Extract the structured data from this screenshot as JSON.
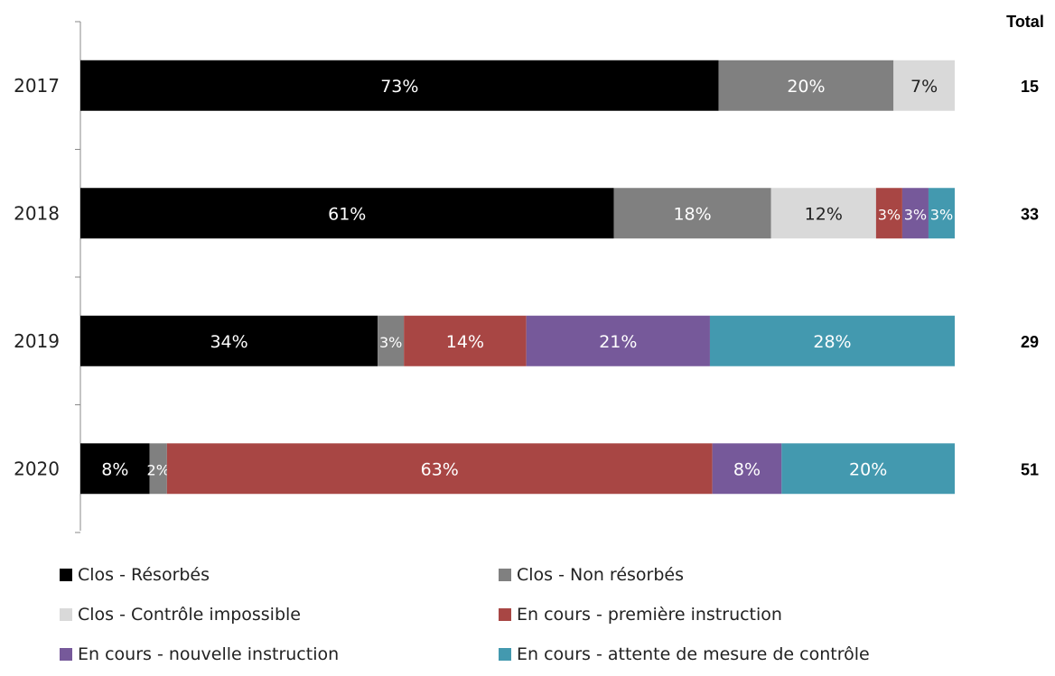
{
  "chart_data": {
    "type": "bar",
    "orientation": "horizontal",
    "stacked": true,
    "normalized": true,
    "categories": [
      "2017",
      "2018",
      "2019",
      "2020"
    ],
    "series": [
      {
        "name": "Clos - Résorbés",
        "color": "#000000",
        "values": [
          73,
          61,
          34,
          8
        ],
        "labels": [
          "73%",
          "61%",
          "34%",
          "8%"
        ]
      },
      {
        "name": "Clos - Non résorbés",
        "color": "#808080",
        "values": [
          20,
          18,
          3,
          2
        ],
        "labels": [
          "20%",
          "18%",
          "3%",
          "2%"
        ]
      },
      {
        "name": "Clos - Contrôle impossible",
        "color": "#d9d9d9",
        "values": [
          7,
          12,
          0,
          0
        ],
        "labels": [
          "7%",
          "12%",
          "",
          ""
        ]
      },
      {
        "name": "En cours - première instruction",
        "color": "#a84644",
        "values": [
          0,
          3,
          14,
          63
        ],
        "labels": [
          "",
          "3%",
          "14%",
          "63%"
        ]
      },
      {
        "name": "En cours - nouvelle instruction",
        "color": "#76599a",
        "values": [
          0,
          3,
          21,
          8
        ],
        "labels": [
          "",
          "3%",
          "21%",
          "8%"
        ]
      },
      {
        "name": "En cours - attente de mesure de contrôle",
        "color": "#4399af",
        "values": [
          0,
          3,
          28,
          20
        ],
        "labels": [
          "",
          "3%",
          "28%",
          "20%"
        ]
      }
    ],
    "totals_header": "Total",
    "totals": [
      "15",
      "33",
      "29",
      "51"
    ],
    "legend_position": "bottom",
    "grid": false
  }
}
